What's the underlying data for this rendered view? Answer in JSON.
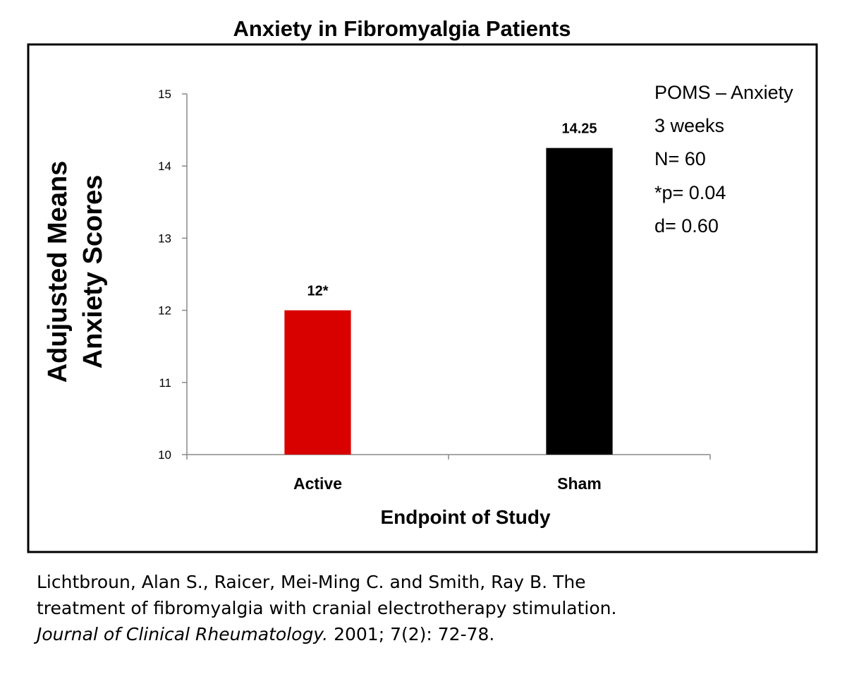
{
  "chart_data": {
    "type": "bar",
    "title": "Anxiety in Fibromyalgia Patients",
    "ylabel_lines": [
      "Adujusted Means",
      "Anxiety Scores"
    ],
    "xlabel": "Endpoint of Study",
    "categories": [
      "Active",
      "Sham"
    ],
    "values": [
      12,
      14.25
    ],
    "data_labels": [
      "12*",
      "14.25"
    ],
    "colors": [
      "#d90000",
      "#000000"
    ],
    "ylim": [
      10,
      15
    ],
    "yticks": [
      10,
      11,
      12,
      13,
      14,
      15
    ],
    "grid": false,
    "annotations": [
      "POMS – Anxiety",
      "3 weeks",
      "N= 60",
      "*p= 0.04",
      "d= 0.60"
    ]
  },
  "citation": {
    "line1": "Lichtbroun, Alan S., Raicer, Mei-Ming C. and Smith, Ray B. The",
    "line2": "treatment of fibromyalgia with cranial electrotherapy stimulation.",
    "journal": "Journal of Clinical Rheumatology.",
    "details": " 2001; 7(2): 72-78."
  }
}
